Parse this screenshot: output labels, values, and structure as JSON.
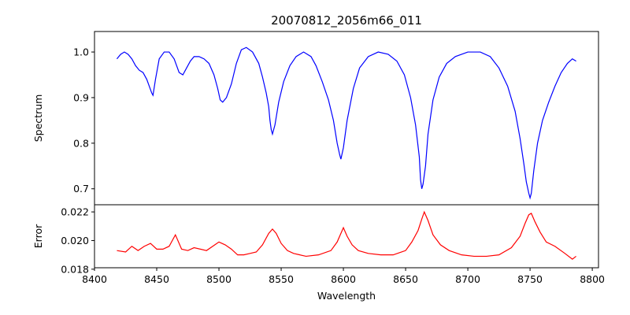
{
  "chart_data": [
    {
      "type": "line",
      "title": "20070812_2056m66_011",
      "ylabel": "Spectrum",
      "xlim": [
        8400,
        8805
      ],
      "ylim": [
        0.665,
        1.045
      ],
      "yticks": [
        0.7,
        0.8,
        0.9,
        1.0
      ],
      "ytick_labels": [
        "0.7",
        "0.8",
        "0.9",
        "1.0"
      ],
      "grid": false,
      "series": [
        {
          "color": "#0000ff",
          "x": [
            8418,
            8421,
            8424,
            8427,
            8430,
            8433,
            8436,
            8439,
            8442,
            8444,
            8446,
            8447,
            8449,
            8452,
            8456,
            8460,
            8464,
            8466,
            8468,
            8471,
            8474,
            8477,
            8480,
            8484,
            8488,
            8492,
            8496,
            8499,
            8501,
            8503,
            8506,
            8510,
            8514,
            8518,
            8522,
            8527,
            8532,
            8535,
            8538,
            8540,
            8541,
            8542,
            8543,
            8545,
            8548,
            8552,
            8557,
            8562,
            8568,
            8574,
            8578,
            8583,
            8588,
            8592,
            8595,
            8597,
            8598,
            8600,
            8603,
            8608,
            8613,
            8620,
            8628,
            8636,
            8643,
            8649,
            8654,
            8658,
            8661,
            8662,
            8663,
            8664,
            8666,
            8668,
            8672,
            8677,
            8683,
            8690,
            8700,
            8710,
            8718,
            8725,
            8732,
            8738,
            8742,
            8745,
            8747,
            8749,
            8750,
            8751,
            8753,
            8756,
            8760,
            8765,
            8770,
            8775,
            8780,
            8784,
            8787
          ],
          "y": [
            0.985,
            0.995,
            1.0,
            0.995,
            0.985,
            0.97,
            0.96,
            0.955,
            0.94,
            0.925,
            0.91,
            0.905,
            0.94,
            0.985,
            1.0,
            1.0,
            0.985,
            0.97,
            0.955,
            0.95,
            0.965,
            0.98,
            0.99,
            0.99,
            0.985,
            0.975,
            0.95,
            0.92,
            0.895,
            0.89,
            0.9,
            0.93,
            0.975,
            1.005,
            1.01,
            1.0,
            0.975,
            0.945,
            0.91,
            0.88,
            0.85,
            0.83,
            0.82,
            0.84,
            0.89,
            0.935,
            0.97,
            0.99,
            1.0,
            0.99,
            0.97,
            0.935,
            0.895,
            0.85,
            0.8,
            0.775,
            0.765,
            0.79,
            0.85,
            0.92,
            0.965,
            0.99,
            1.0,
            0.995,
            0.98,
            0.95,
            0.9,
            0.84,
            0.77,
            0.72,
            0.7,
            0.71,
            0.75,
            0.82,
            0.895,
            0.945,
            0.975,
            0.99,
            1.0,
            1.0,
            0.99,
            0.965,
            0.925,
            0.87,
            0.81,
            0.755,
            0.715,
            0.69,
            0.68,
            0.69,
            0.74,
            0.8,
            0.85,
            0.89,
            0.925,
            0.955,
            0.975,
            0.985,
            0.98
          ]
        }
      ]
    },
    {
      "type": "line",
      "ylabel": "Error",
      "xlabel": "Wavelength",
      "xlim": [
        8400,
        8805
      ],
      "ylim": [
        0.0181,
        0.0225
      ],
      "xticks": [
        8400,
        8450,
        8500,
        8550,
        8600,
        8650,
        8700,
        8750,
        8800
      ],
      "xtick_labels": [
        "8400",
        "8450",
        "8500",
        "8550",
        "8600",
        "8650",
        "8700",
        "8750",
        "8800"
      ],
      "yticks": [
        0.018,
        0.02,
        0.022
      ],
      "ytick_labels": [
        "0.018",
        "0.020",
        "0.022"
      ],
      "grid": false,
      "series": [
        {
          "color": "#ff0000",
          "x": [
            8418,
            8425,
            8430,
            8435,
            8440,
            8445,
            8450,
            8455,
            8460,
            8465,
            8470,
            8475,
            8480,
            8490,
            8500,
            8505,
            8510,
            8515,
            8520,
            8525,
            8530,
            8535,
            8540,
            8543,
            8546,
            8550,
            8555,
            8560,
            8565,
            8570,
            8580,
            8590,
            8595,
            8598,
            8600,
            8603,
            8607,
            8612,
            8620,
            8630,
            8640,
            8650,
            8655,
            8660,
            8663,
            8665,
            8668,
            8672,
            8678,
            8685,
            8695,
            8705,
            8715,
            8725,
            8735,
            8742,
            8746,
            8749,
            8751,
            8754,
            8758,
            8763,
            8770,
            8778,
            8784,
            8787
          ],
          "y": [
            0.0193,
            0.0192,
            0.0196,
            0.0193,
            0.0196,
            0.0198,
            0.0194,
            0.0194,
            0.0196,
            0.0204,
            0.0194,
            0.0193,
            0.0195,
            0.0193,
            0.0199,
            0.0197,
            0.0194,
            0.019,
            0.019,
            0.0191,
            0.0192,
            0.0197,
            0.0205,
            0.0208,
            0.0205,
            0.0198,
            0.0193,
            0.0191,
            0.019,
            0.0189,
            0.019,
            0.0193,
            0.0199,
            0.0205,
            0.0209,
            0.0203,
            0.0197,
            0.0193,
            0.0191,
            0.019,
            0.019,
            0.0193,
            0.0199,
            0.0207,
            0.0215,
            0.022,
            0.0214,
            0.0204,
            0.0197,
            0.0193,
            0.019,
            0.0189,
            0.0189,
            0.019,
            0.0195,
            0.0203,
            0.0212,
            0.0218,
            0.0219,
            0.0213,
            0.0206,
            0.0199,
            0.0196,
            0.0191,
            0.0187,
            0.0189
          ]
        }
      ]
    }
  ]
}
